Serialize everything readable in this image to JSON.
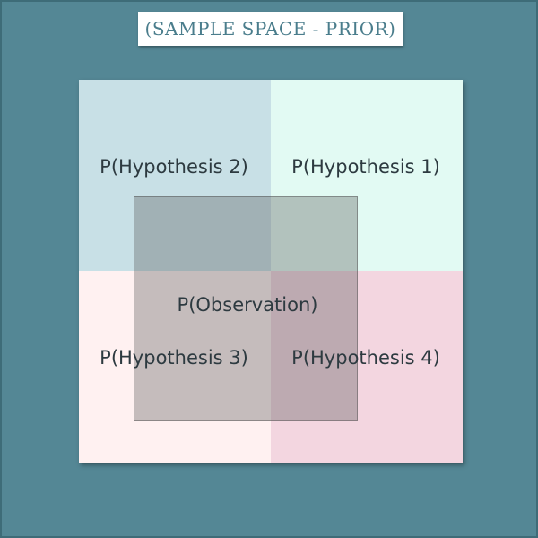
{
  "title": "(SAMPLE SPACE - PRIOR)",
  "quadrants": [
    {
      "label": "P(Hypothesis 2)",
      "color": "#c8e0e6"
    },
    {
      "label": "P(Hypothesis 1)",
      "color": "#e2faf3"
    },
    {
      "label": "P(Hypothesis 3)",
      "color": "#fff1f1"
    },
    {
      "label": "P(Hypothesis 4)",
      "color": "#f3d6e0"
    }
  ],
  "observation": {
    "label": "P(Observation)"
  },
  "colors": {
    "background": "#548795",
    "title_text": "#4a7d8c",
    "overlay": "#808080"
  }
}
